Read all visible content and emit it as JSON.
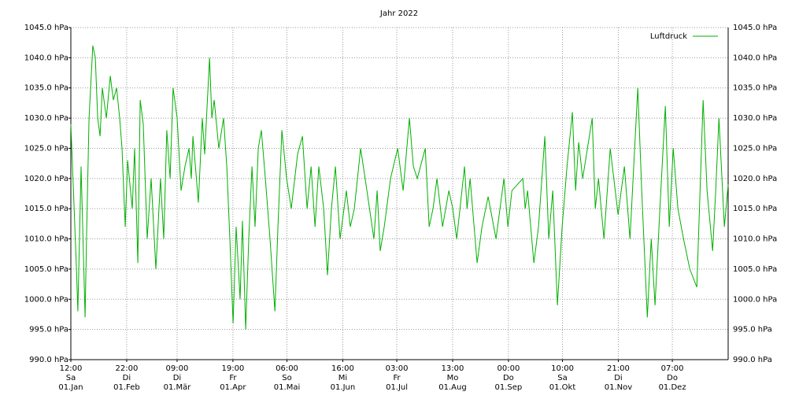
{
  "chart_data": {
    "type": "line",
    "title": "Jahr 2022",
    "xlim": [
      0,
      365
    ],
    "xticks": [
      {
        "value": 0,
        "label": [
          "12:00",
          "Sa",
          "01.Jan"
        ]
      },
      {
        "value": 31,
        "label": [
          "22:00",
          "Di",
          "01.Feb"
        ]
      },
      {
        "value": 59,
        "label": [
          "09:00",
          "Di",
          "01.Mär"
        ]
      },
      {
        "value": 90,
        "label": [
          "19:00",
          "Fr",
          "01.Apr"
        ]
      },
      {
        "value": 120,
        "label": [
          "06:00",
          "So",
          "01.Mai"
        ]
      },
      {
        "value": 151,
        "label": [
          "16:00",
          "Mi",
          "01.Jun"
        ]
      },
      {
        "value": 181,
        "label": [
          "03:00",
          "Fr",
          "01.Jul"
        ]
      },
      {
        "value": 212,
        "label": [
          "13:00",
          "Mo",
          "01.Aug"
        ]
      },
      {
        "value": 243,
        "label": [
          "00:00",
          "Do",
          "01.Sep"
        ]
      },
      {
        "value": 273,
        "label": [
          "10:00",
          "Sa",
          "01.Okt"
        ]
      },
      {
        "value": 304,
        "label": [
          "21:00",
          "Di",
          "01.Nov"
        ]
      },
      {
        "value": 334,
        "label": [
          "07:00",
          "Do",
          "01.Dez"
        ]
      }
    ],
    "ylim": [
      990,
      1045
    ],
    "yticks": [
      {
        "value": 990,
        "label": "990.0 hPa"
      },
      {
        "value": 995,
        "label": "995.0 hPa"
      },
      {
        "value": 1000,
        "label": "1000.0 hPa"
      },
      {
        "value": 1005,
        "label": "1005.0 hPa"
      },
      {
        "value": 1010,
        "label": "1010.0 hPa"
      },
      {
        "value": 1015,
        "label": "1015.0 hPa"
      },
      {
        "value": 1020,
        "label": "1020.0 hPa"
      },
      {
        "value": 1025,
        "label": "1025.0 hPa"
      },
      {
        "value": 1030,
        "label": "1030.0 hPa"
      },
      {
        "value": 1035,
        "label": "1035.0 hPa"
      },
      {
        "value": 1040,
        "label": "1040.0 hPa"
      },
      {
        "value": 1045,
        "label": "1045.0 hPa"
      }
    ],
    "grid": true,
    "legend": "top-right",
    "x": [
      0,
      1.7,
      3.1,
      3.9,
      5.7,
      7.9,
      8.7,
      10.1,
      12.2,
      13.6,
      14.9,
      16.2,
      17.5,
      19.7,
      21.9,
      23.6,
      25.4,
      27.1,
      28.4,
      30.2,
      31.5,
      34.1,
      35.4,
      37.2,
      38.5,
      40.2,
      42.4,
      44.6,
      47.2,
      49.8,
      51.6,
      53.3,
      55.1,
      56.8,
      59,
      61.2,
      63.4,
      65.6,
      66.9,
      67.8,
      70.8,
      73,
      74.3,
      77,
      78.3,
      79.6,
      82.2,
      84.8,
      86.6,
      88.3,
      90.1,
      91.8,
      94,
      95.3,
      97.1,
      98.8,
      100.6,
      102.3,
      104.1,
      105.8,
      108,
      110.6,
      113.3,
      115,
      117.2,
      119.8,
      122.4,
      125.9,
      128.6,
      131.2,
      133.4,
      135.6,
      137.7,
      140.4,
      142.5,
      144.7,
      146.9,
      149.5,
      153,
      155.2,
      157.4,
      160.9,
      164.4,
      168.3,
      170.1,
      171.8,
      174,
      177.5,
      181.5,
      184.5,
      188,
      190.2,
      192.4,
      196.8,
      199,
      201.1,
      203.3,
      206.4,
      209.9,
      212.1,
      214.3,
      218.6,
      220,
      221.7,
      225.6,
      228.3,
      231.7,
      236.1,
      240.5,
      242.7,
      244.9,
      251,
      252.3,
      253.6,
      257.1,
      259.7,
      263.2,
      265.4,
      267.6,
      270.2,
      272.8,
      275.5,
      278.5,
      280.3,
      282,
      284.2,
      289.5,
      291.2,
      293,
      296,
      299.5,
      303.9,
      307.4,
      310.5,
      314.8,
      317,
      320.1,
      322.3,
      324.4,
      327.1,
      330.1,
      332.3,
      334.5,
      337.1,
      340.2,
      343.7,
      347.6,
      351.1,
      353.3,
      356.4,
      358.1,
      359.9,
      362.9,
      365
    ],
    "series": [
      {
        "name": "Luftdruck",
        "color": "#00b000",
        "values": [
          1029,
          1016,
          1005,
          998,
          1022,
          997,
          1010,
          1030,
          1042,
          1040,
          1030,
          1027,
          1035,
          1030,
          1037,
          1033,
          1035,
          1030,
          1025,
          1012,
          1023,
          1015,
          1025,
          1006,
          1033,
          1029,
          1010,
          1020,
          1005,
          1020,
          1010,
          1028,
          1020,
          1035,
          1030,
          1018,
          1022,
          1025,
          1020,
          1027,
          1016,
          1030,
          1024,
          1040,
          1030,
          1033,
          1025,
          1030,
          1022,
          1010,
          996,
          1012,
          1000,
          1013,
          995,
          1010,
          1022,
          1012,
          1025,
          1028,
          1020,
          1010,
          998,
          1012,
          1028,
          1020,
          1015,
          1024,
          1027,
          1015,
          1022,
          1012,
          1022,
          1015,
          1004,
          1015,
          1022,
          1010,
          1018,
          1012,
          1015,
          1025,
          1018,
          1010,
          1018,
          1008,
          1012,
          1020,
          1025,
          1018,
          1030,
          1022,
          1020,
          1025,
          1012,
          1015,
          1020,
          1012,
          1018,
          1015,
          1010,
          1022,
          1015,
          1020,
          1006,
          1012,
          1017,
          1010,
          1020,
          1012,
          1018,
          1020,
          1015,
          1018,
          1006,
          1012,
          1027,
          1010,
          1018,
          999,
          1012,
          1022,
          1031,
          1018,
          1026,
          1020,
          1030,
          1015,
          1020,
          1010,
          1025,
          1014,
          1022,
          1010,
          1035,
          1018,
          997,
          1010,
          999,
          1015,
          1032,
          1012,
          1025,
          1015,
          1010,
          1005,
          1002,
          1033,
          1018,
          1008,
          1018,
          1030,
          1012,
          1019
        ]
      }
    ]
  }
}
